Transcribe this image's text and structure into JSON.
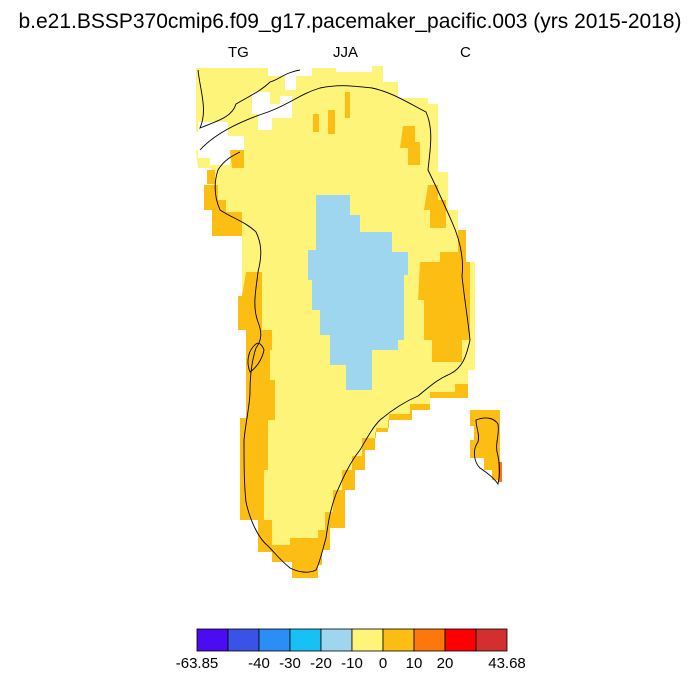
{
  "title": "b.e21.BSSP370cmip6.f09_g17.pacemaker_pacific.003 (yrs 2015-2018)",
  "subtitle": {
    "left": "TG",
    "center": "JJA",
    "right": "C"
  },
  "colorbar": {
    "colors": [
      "#4b0cf2",
      "#3a52e6",
      "#2a8ef5",
      "#17c0f5",
      "#9fd6ef",
      "#fff47a",
      "#fdbe14",
      "#fd780a",
      "#ff0000",
      "#d32f2f"
    ],
    "labels": [
      "-63.85",
      "-40",
      "-30",
      "-20",
      "-10",
      "0",
      "10",
      "20",
      "43.68"
    ]
  },
  "map_fields": {
    "region_categories": [
      "0 to 10",
      "10 to 20",
      "-10 to 0",
      "20 to 43.68"
    ],
    "colors": {
      "0 to 10": "#fff47a",
      "10 to 20": "#fdbe14",
      "-10 to 0": "#9fd6ef",
      "20 to 43.68": "#fd780a"
    }
  }
}
